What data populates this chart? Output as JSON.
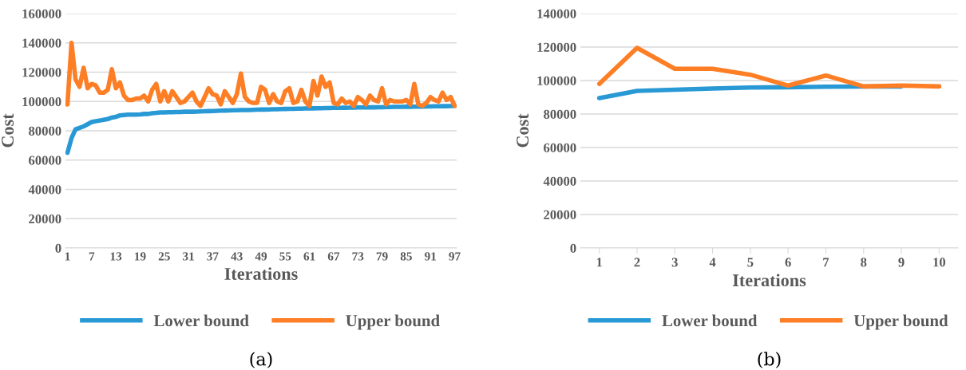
{
  "chart_data": [
    {
      "type": "line",
      "xlabel": "Iterations",
      "ylabel": "Cost",
      "ylim": [
        0,
        160000
      ],
      "yticks": [
        0,
        20000,
        40000,
        60000,
        80000,
        100000,
        120000,
        140000,
        160000
      ],
      "grid": "y",
      "legend": "bottom",
      "marker": "none",
      "line_style": "solid",
      "annotations": [
        "(a)"
      ],
      "categories": [
        "1",
        null,
        null,
        null,
        null,
        null,
        "7",
        null,
        null,
        null,
        null,
        null,
        "13",
        null,
        null,
        null,
        null,
        null,
        "19",
        null,
        null,
        null,
        null,
        null,
        "25",
        null,
        null,
        null,
        null,
        null,
        "31",
        null,
        null,
        null,
        null,
        null,
        "37",
        null,
        null,
        null,
        null,
        null,
        "43",
        null,
        null,
        null,
        null,
        null,
        "49",
        null,
        null,
        null,
        null,
        null,
        "55",
        null,
        null,
        null,
        null,
        null,
        "61",
        null,
        null,
        null,
        null,
        null,
        "67",
        null,
        null,
        null,
        null,
        null,
        "73",
        null,
        null,
        null,
        null,
        null,
        "79",
        null,
        null,
        null,
        null,
        null,
        "85",
        null,
        null,
        null,
        null,
        null,
        "91",
        null,
        null,
        null,
        null,
        null,
        "97"
      ],
      "series": [
        {
          "name": "Lower bound",
          "color": "#2899d5",
          "values": [
            65000,
            75000,
            81000,
            82000,
            83000,
            84500,
            86000,
            86500,
            87000,
            87500,
            88000,
            89000,
            89500,
            90500,
            90800,
            91000,
            91000,
            91000,
            91200,
            91500,
            91500,
            92000,
            92200,
            92500,
            92500,
            92600,
            92700,
            92800,
            92800,
            93000,
            93000,
            93000,
            93100,
            93200,
            93300,
            93400,
            93500,
            93600,
            93700,
            93800,
            93900,
            94000,
            94000,
            94100,
            94200,
            94200,
            94300,
            94400,
            94500,
            94500,
            94600,
            94700,
            94700,
            94800,
            94900,
            95000,
            95000,
            95100,
            95100,
            95200,
            95300,
            95300,
            95400,
            95400,
            95500,
            95500,
            95600,
            95600,
            95700,
            95700,
            95800,
            95800,
            95900,
            95900,
            96000,
            96000,
            96000,
            96100,
            96100,
            96200,
            96200,
            96300,
            96300,
            96300,
            96400,
            96400,
            96500,
            96500,
            96500,
            96600,
            96600,
            96700,
            96700,
            96800,
            96800,
            96900,
            97000
          ]
        },
        {
          "name": "Upper bound",
          "color": "#fd7e24",
          "values": [
            98000,
            140000,
            115000,
            110000,
            123000,
            109000,
            112000,
            111000,
            106000,
            106000,
            108000,
            122000,
            109000,
            113000,
            104000,
            101000,
            101000,
            102000,
            102000,
            104000,
            100000,
            108000,
            112000,
            100000,
            107000,
            100000,
            107000,
            103000,
            99000,
            100000,
            103000,
            106000,
            100000,
            97000,
            103000,
            109000,
            105000,
            104000,
            98000,
            107000,
            103000,
            99000,
            105000,
            119000,
            103000,
            100000,
            99000,
            99000,
            110000,
            108000,
            99000,
            105000,
            100000,
            99000,
            107000,
            109000,
            99000,
            100000,
            108000,
            100000,
            97000,
            114000,
            104000,
            117000,
            110000,
            113000,
            99000,
            98000,
            102000,
            99000,
            100000,
            97000,
            103000,
            101000,
            98000,
            104000,
            101000,
            100000,
            109000,
            98000,
            101000,
            100000,
            100000,
            100000,
            101000,
            98000,
            112000,
            98000,
            97000,
            99000,
            103000,
            101000,
            100000,
            106000,
            101000,
            103000,
            97000
          ]
        }
      ]
    },
    {
      "type": "line",
      "xlabel": "Iterations",
      "ylabel": "Cost",
      "ylim": [
        0,
        140000
      ],
      "yticks": [
        0,
        20000,
        40000,
        60000,
        80000,
        100000,
        120000,
        140000
      ],
      "grid": "y",
      "legend": "bottom",
      "marker": "none",
      "line_style": "solid",
      "annotations": [
        "(b)"
      ],
      "categories": [
        "1",
        "2",
        "3",
        "4",
        "5",
        "6",
        "7",
        "8",
        "9",
        "10"
      ],
      "series": [
        {
          "name": "Lower bound",
          "color": "#2899d5",
          "values": [
            89500,
            93800,
            94500,
            95200,
            95800,
            96000,
            96300,
            96400,
            96500,
            null
          ]
        },
        {
          "name": "Upper bound",
          "color": "#fd7e24",
          "values": [
            98000,
            119500,
            107000,
            107000,
            103500,
            97000,
            103000,
            96500,
            97000,
            96500
          ]
        }
      ]
    }
  ]
}
